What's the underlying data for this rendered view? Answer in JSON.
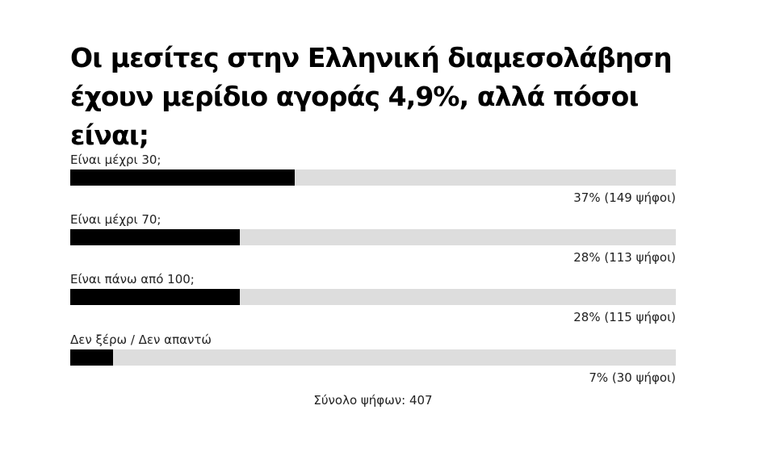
{
  "poll": {
    "title_line1": "Οι μεσίτες στην Ελληνική διαμεσολάβηση",
    "title_line2": "έχουν μερίδιο αγοράς 4,9%, αλλά πόσοι είναι;",
    "options": [
      {
        "label": "Είναι μέχρι 30;",
        "fraction": 0.37,
        "result": "37% (149 ψήφοι)"
      },
      {
        "label": "Είναι μέχρι 70;",
        "fraction": 0.28,
        "result": "28% (113 ψήφοι)"
      },
      {
        "label": "Είναι πάνω από 100;",
        "fraction": 0.28,
        "result": "28% (115 ψήφοι)"
      },
      {
        "label": "Δεν ξέρω / Δεν απαντώ",
        "fraction": 0.07,
        "result": "7% (30 ψήφοι)"
      }
    ],
    "total_label": "Σύνολο ψήφων: 407"
  },
  "colors": {
    "bar_fill": "#000000",
    "bar_track": "#dddddd",
    "background": "#ffffff"
  }
}
